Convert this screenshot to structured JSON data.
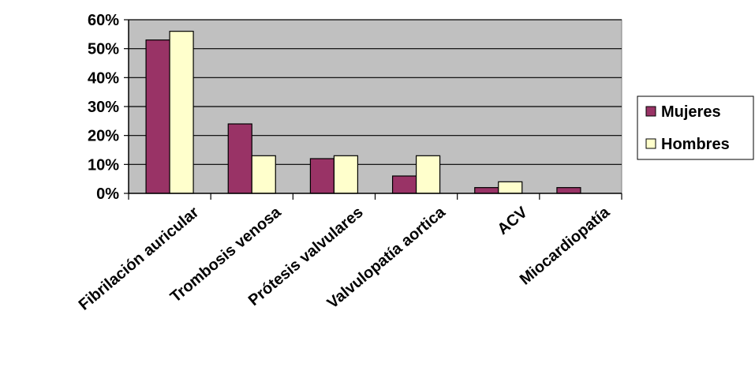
{
  "chart_data": {
    "type": "bar",
    "title": "",
    "xlabel": "",
    "ylabel": "",
    "categories": [
      "Fibrilación auricular",
      "Trombosis venosa",
      "Prótesis valvulares",
      "Valvulopatía aortica",
      "ACV",
      "Miocardiopatía"
    ],
    "series": [
      {
        "name": "Mujeres",
        "values": [
          0.53,
          0.24,
          0.12,
          0.06,
          0.02,
          0.02
        ],
        "color": "#993366"
      },
      {
        "name": "Hombres",
        "values": [
          0.56,
          0.13,
          0.13,
          0.13,
          0.04,
          0
        ],
        "color": "#FFFFCC"
      }
    ],
    "ylim": [
      0,
      0.6
    ],
    "yticks": [
      "0%",
      "10%",
      "20%",
      "30%",
      "40%",
      "50%",
      "60%"
    ],
    "grid": true,
    "plot_background": "#C0C0C0",
    "legend_position": "right"
  }
}
